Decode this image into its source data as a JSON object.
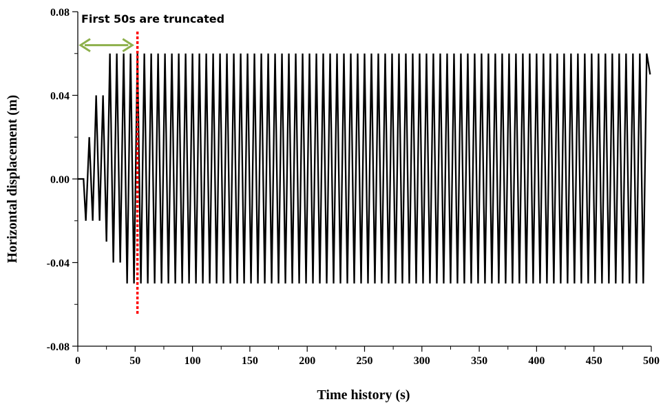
{
  "chart_data": {
    "type": "line",
    "title": "",
    "xlabel": "Time history (s)",
    "ylabel": "Horizontal displacement (m)",
    "xlim": [
      0,
      500
    ],
    "ylim": [
      -0.08,
      0.08
    ],
    "x_ticks": [
      0,
      50,
      100,
      150,
      200,
      250,
      300,
      350,
      400,
      450,
      500
    ],
    "x_tick_labels": [
      "0",
      "50",
      "100",
      "150",
      "200",
      "250",
      "300",
      "350",
      "400",
      "450",
      "500"
    ],
    "y_ticks": [
      -0.08,
      -0.04,
      0.0,
      0.04,
      0.08
    ],
    "y_tick_labels": [
      "-0.08",
      "-0.04",
      "0.00",
      "0.04",
      "0.08"
    ],
    "grid": false,
    "legend": "none",
    "series": [
      {
        "color": "#000000",
        "description": "cyclic ramp-up then steady oscillation",
        "ramp_points": [
          [
            0,
            0
          ],
          [
            5,
            0
          ],
          [
            7,
            -0.02
          ],
          [
            10,
            0.02
          ],
          [
            13,
            -0.02
          ],
          [
            16,
            0.04
          ],
          [
            19,
            -0.02
          ],
          [
            22,
            0.04
          ],
          [
            25,
            -0.03
          ],
          [
            28,
            0.06
          ],
          [
            31,
            -0.04
          ],
          [
            34,
            0.06
          ],
          [
            37,
            -0.04
          ],
          [
            40,
            0.06
          ],
          [
            43,
            -0.05
          ]
        ],
        "steady": {
          "start": 43,
          "end": 497,
          "period": 6,
          "max": 0.06,
          "min": -0.05
        },
        "final_point": [
          499,
          0.05
        ]
      }
    ],
    "annotations": {
      "text": "First 50s are truncated",
      "arrow_color": "#8db04b",
      "arrow_x_range": [
        0,
        50
      ],
      "arrow_y": 0.064,
      "cut_line_color": "#ff0000",
      "cut_line_x": 52,
      "cut_line_y_range": [
        -0.065,
        0.0705
      ]
    }
  }
}
